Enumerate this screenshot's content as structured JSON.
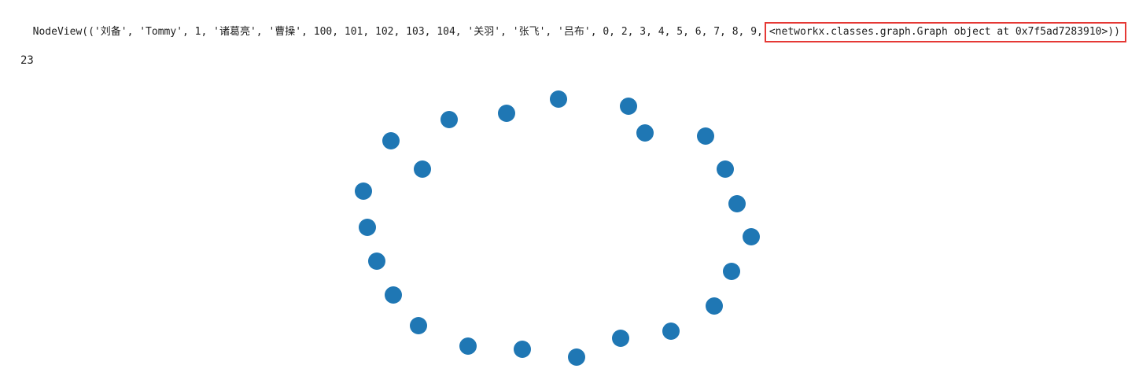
{
  "output": {
    "nodeview_prefix": "NodeView(('刘备', 'Tommy', 1, '诸葛亮', '曹操', 100, 101, 102, 103, 104, '关羽', '张飞', '吕布', 0, 2, 3, 4, 5, 6, 7, 8, 9,",
    "highlighted_text": "<networkx.classes.graph.Graph object at 0x7f5ad7283910>))",
    "node_count": "23"
  },
  "graph": {
    "node_color": "#1f77b4",
    "node_count": 23,
    "edges": 0
  },
  "colors": {
    "highlight_border": "#e53935"
  }
}
